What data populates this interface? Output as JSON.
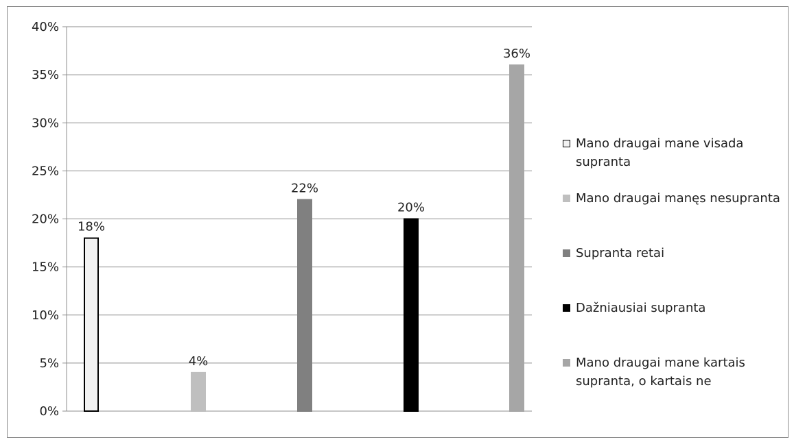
{
  "chart_data": {
    "type": "bar",
    "title": "",
    "xlabel": "",
    "ylabel": "",
    "ylim": [
      0,
      40
    ],
    "yticks": [
      0,
      5,
      10,
      15,
      20,
      25,
      30,
      35,
      40
    ],
    "ytick_labels": [
      "0%",
      "5%",
      "10%",
      "15%",
      "20%",
      "25%",
      "30%",
      "35%",
      "40%"
    ],
    "grid": true,
    "legend_position": "right",
    "series": [
      {
        "name": "Mano draugai mane visada supranta",
        "value": 18,
        "label": "18%",
        "color": "#f2f2f2",
        "stroke": "#000000"
      },
      {
        "name": "Mano draugai manęs nesupranta",
        "value": 4,
        "label": "4%",
        "color": "#bfbfbf",
        "stroke": "#bfbfbf"
      },
      {
        "name": "Supranta retai",
        "value": 22,
        "label": "22%",
        "color": "#808080",
        "stroke": "#808080"
      },
      {
        "name": "Dažniausiai supranta",
        "value": 20,
        "label": "20%",
        "color": "#000000",
        "stroke": "#000000"
      },
      {
        "name": "Mano draugai mane kartais supranta, o kartais ne",
        "value": 36,
        "label": "36%",
        "color": "#a6a6a6",
        "stroke": "#a6a6a6"
      }
    ]
  }
}
